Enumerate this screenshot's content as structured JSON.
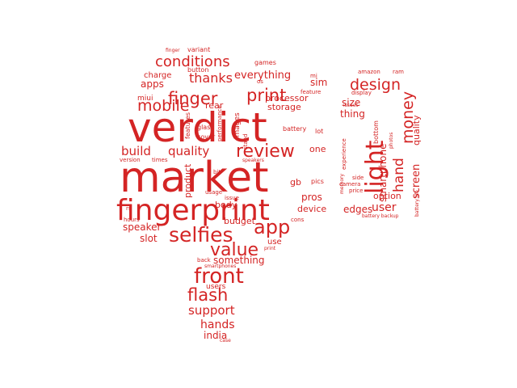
{
  "colors": {
    "text": "#d42424",
    "background": "#ffffff"
  },
  "words": [
    "market",
    "verdict",
    "fingerprint",
    "selfies",
    "light",
    "front",
    "value",
    "flash",
    "app",
    "review",
    "finger",
    "print",
    "mobile",
    "conditions",
    "design",
    "money",
    "hand",
    "thanks",
    "build",
    "quality",
    "support",
    "hands",
    "india",
    "user",
    "screen",
    "smartphone",
    "quality",
    "everything",
    "processor",
    "storage",
    "sim",
    "apps",
    "charge",
    "miui",
    "rear",
    "size",
    "thing",
    "edges",
    "option",
    "speaker",
    "slot",
    "pros",
    "device",
    "budget",
    "body",
    "product",
    "gb",
    "one",
    "use",
    "something",
    "users",
    "features",
    "glass",
    "cover",
    "images",
    "performance",
    "stand",
    "battery",
    "lot",
    "pics",
    "hours",
    "rs",
    "version",
    "times",
    "speakers",
    "bit",
    "usage",
    "issue",
    "cons",
    "print",
    "back",
    "smartphones",
    "case",
    "variant",
    "button",
    "finger",
    "games",
    "os",
    "mi",
    "feature",
    "amazon",
    "ram",
    "display",
    "issues",
    "camera",
    "memory",
    "experience",
    "side",
    "price",
    "bottom",
    "photos",
    "battery life",
    "battery backup"
  ]
}
